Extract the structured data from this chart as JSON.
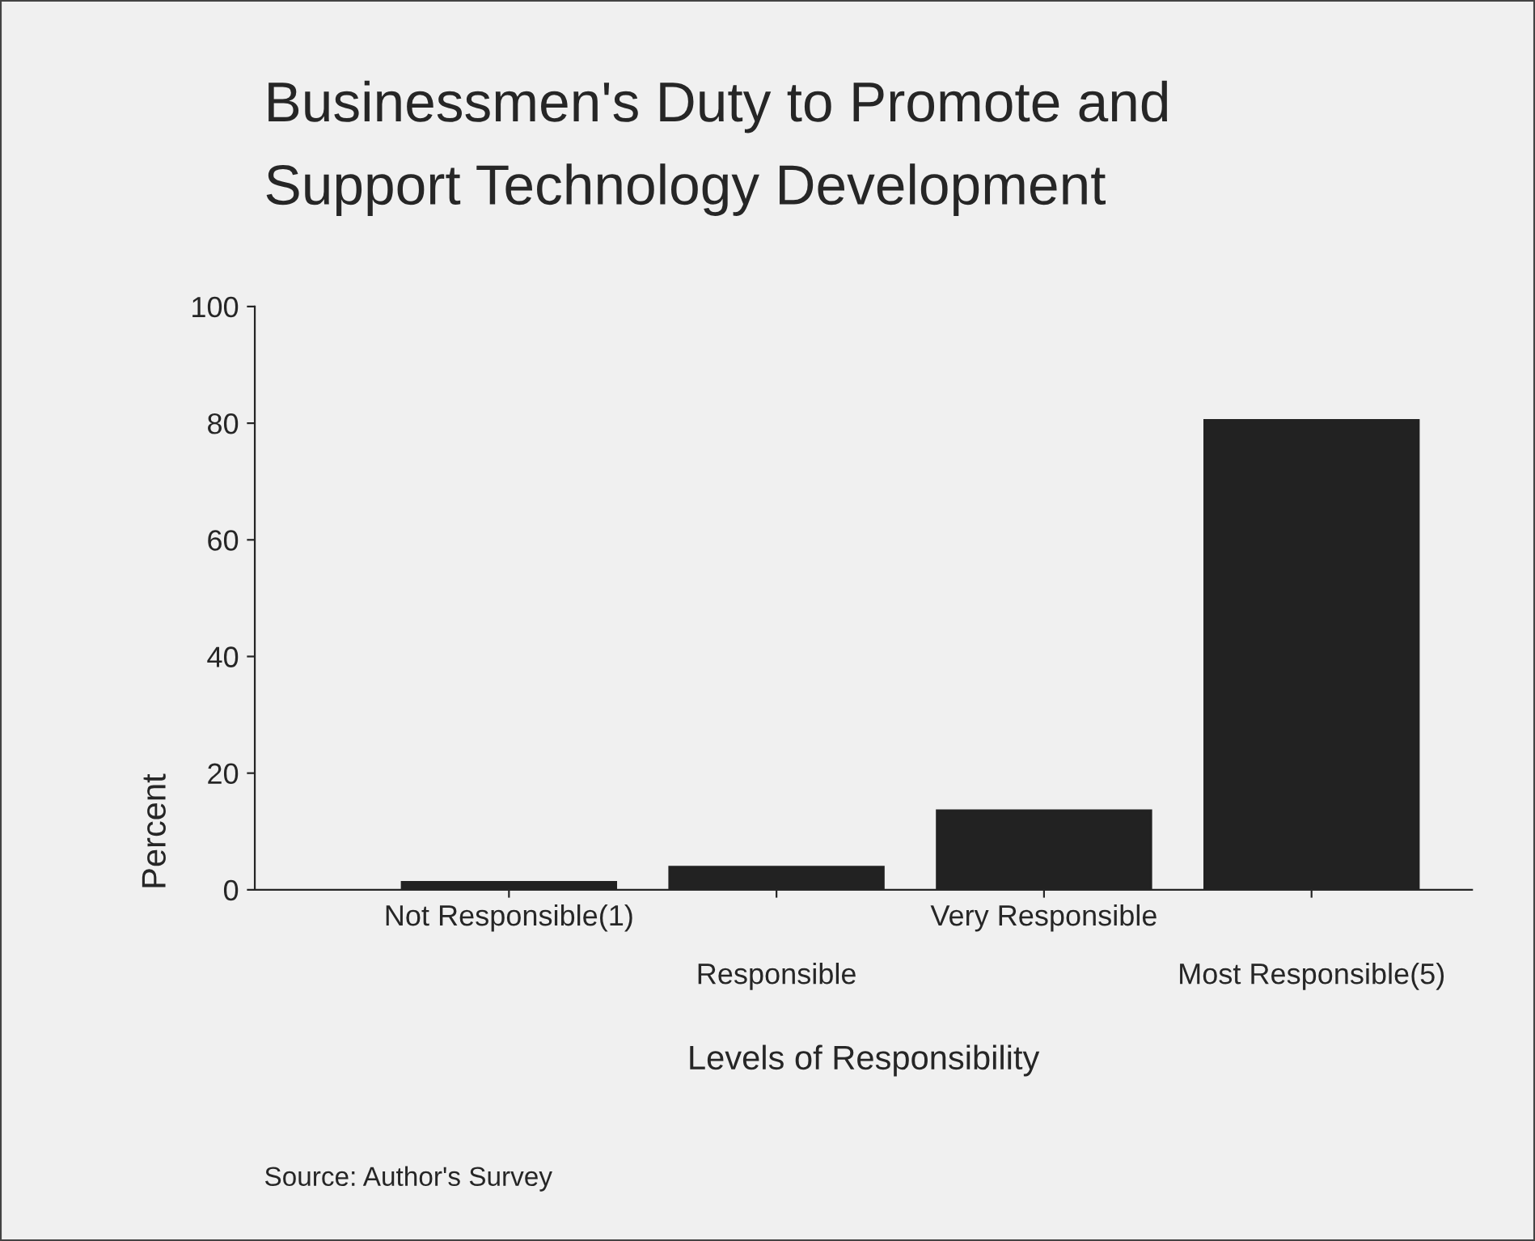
{
  "chart_data": {
    "type": "bar",
    "title": "Businessmen's Duty to Promote and\nSupport Technology Development",
    "xlabel": "Levels of Responsibility",
    "ylabel": "Percent",
    "categories": [
      "Not Responsible(1)",
      "Responsible",
      "Very Responsible",
      "Most Responsible(5)"
    ],
    "values": [
      1.3,
      3.9,
      13.6,
      80.5
    ],
    "color": "#222222",
    "ylim": [
      0,
      100
    ],
    "yticks": [
      0,
      20,
      40,
      60,
      80,
      100
    ],
    "grid": false,
    "annotations": [
      "Source: Author's Survey"
    ]
  }
}
